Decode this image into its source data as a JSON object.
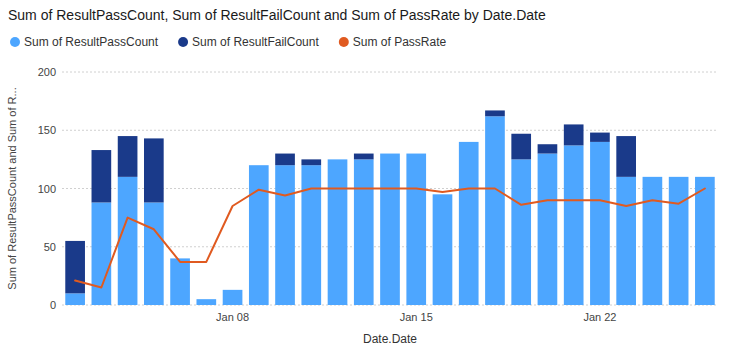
{
  "chart_data": {
    "type": "bar",
    "title": "Sum of ResultPassCount, Sum of ResultFailCount and Sum of PassRate by Date.Date",
    "xlabel": "Date.Date",
    "ylabel": "Sum of ResultPassCount and Sum of R...",
    "categories": [
      null,
      null,
      null,
      null,
      null,
      null,
      "Jan 08",
      null,
      null,
      null,
      null,
      null,
      null,
      "Jan 15",
      null,
      null,
      null,
      null,
      null,
      null,
      "Jan 22",
      null,
      null,
      null,
      null
    ],
    "series": [
      {
        "name": "Sum of ResultPassCount",
        "type": "bar",
        "color": "#4da6ff",
        "values": [
          10,
          88,
          110,
          88,
          40,
          5,
          13,
          120,
          120,
          120,
          125,
          125,
          130,
          130,
          95,
          140,
          162,
          125,
          130,
          137,
          140,
          110,
          110,
          110,
          110
        ]
      },
      {
        "name": "Sum of ResultFailCount",
        "type": "bar",
        "color": "#1a3a8a",
        "values": [
          45,
          45,
          35,
          55,
          0,
          0,
          0,
          0,
          10,
          5,
          0,
          5,
          0,
          0,
          0,
          0,
          5,
          22,
          8,
          18,
          8,
          35,
          0,
          0,
          0
        ]
      },
      {
        "name": "Sum of PassRate",
        "type": "line",
        "axis": "y2",
        "color": "#e05a20",
        "values": [
          21,
          15,
          75,
          65,
          37,
          37,
          85,
          99,
          94,
          100,
          100,
          100,
          100,
          100,
          97,
          100,
          100,
          86,
          90,
          90,
          90,
          85,
          90,
          87,
          100
        ]
      }
    ],
    "stacked": true,
    "ylim": [
      0,
      200
    ],
    "yticks": [
      0,
      50,
      100,
      150,
      200
    ],
    "y2lim": [
      0,
      200
    ],
    "grid": true,
    "legend": "upper left"
  }
}
